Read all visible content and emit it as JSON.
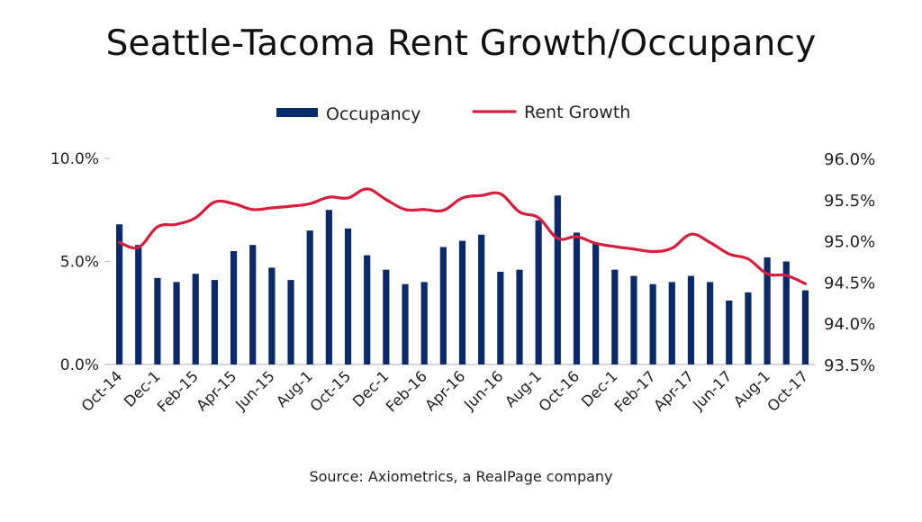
{
  "chart_data": {
    "type": "bar+line",
    "title": "Seattle-Tacoma Rent Growth/Occupancy",
    "source": "Source: Axiometrics, a RealPage company",
    "colors": {
      "bar": "#0b2a6b",
      "line": "#d81e3c",
      "axis": "#bfbfbf"
    },
    "legend": {
      "placement": "top-center"
    },
    "categories": [
      "Oct-14",
      "Nov-14",
      "Dec-1",
      "Jan-15",
      "Feb-15",
      "Mar-15",
      "Apr-15",
      "May-15",
      "Jun-15",
      "Jul-15",
      "Aug-1",
      "Sep-15",
      "Oct-15",
      "Nov-15",
      "Dec-1",
      "Jan-16",
      "Feb-16",
      "Mar-16",
      "Apr-16",
      "May-16",
      "Jun-16",
      "Jul-16",
      "Aug-1",
      "Sep-16",
      "Oct-16",
      "Nov-16",
      "Dec-1",
      "Jan-17",
      "Feb-17",
      "Mar-17",
      "Apr-17",
      "May-17",
      "Jun-17",
      "Jul-17",
      "Aug-1",
      "Sep-17",
      "Oct-17"
    ],
    "tick_labels": [
      "Oct-14",
      "Dec-1",
      "Feb-15",
      "Apr-15",
      "Jun-15",
      "Aug-1",
      "Oct-15",
      "Dec-1",
      "Feb-16",
      "Apr-16",
      "Jun-16",
      "Aug-1",
      "Oct-16",
      "Dec-1",
      "Feb-17",
      "Apr-17",
      "Jun-17",
      "Aug-1",
      "Oct-17"
    ],
    "series": [
      {
        "name": "Occupancy",
        "kind": "bar",
        "axis": "left",
        "values": [
          6.8,
          5.8,
          4.2,
          4.0,
          4.4,
          4.1,
          5.5,
          5.8,
          4.7,
          4.1,
          6.5,
          7.5,
          6.6,
          5.3,
          4.6,
          3.9,
          4.0,
          5.7,
          6.0,
          6.3,
          4.5,
          4.6,
          7.0,
          8.2,
          6.4,
          5.9,
          4.6,
          4.3,
          3.9,
          4.0,
          4.3,
          4.0,
          3.1,
          3.5,
          5.2,
          5.0,
          3.6
        ]
      },
      {
        "name": "Rent Growth",
        "kind": "line",
        "axis": "right",
        "values": [
          94.98,
          94.92,
          95.17,
          95.2,
          95.28,
          95.47,
          95.45,
          95.38,
          95.4,
          95.42,
          95.45,
          95.53,
          95.52,
          95.63,
          95.5,
          95.38,
          95.38,
          95.37,
          95.52,
          95.55,
          95.57,
          95.35,
          95.28,
          95.03,
          95.05,
          94.97,
          94.93,
          94.9,
          94.87,
          94.91,
          95.08,
          94.98,
          94.84,
          94.78,
          94.6,
          94.58,
          94.48
        ]
      }
    ],
    "y_left": {
      "ylim": [
        0,
        10
      ],
      "ticks": [
        "0.0%",
        "5.0%",
        "10.0%"
      ],
      "tick_values": [
        0,
        5,
        10
      ]
    },
    "y_right": {
      "ylim": [
        93.5,
        96.0
      ],
      "ticks": [
        "93.5%",
        "94.0%",
        "94.5%",
        "95.0%",
        "95.5%",
        "96.0%"
      ],
      "tick_values": [
        93.5,
        94.0,
        94.5,
        95.0,
        95.5,
        96.0
      ]
    },
    "grid": false
  }
}
